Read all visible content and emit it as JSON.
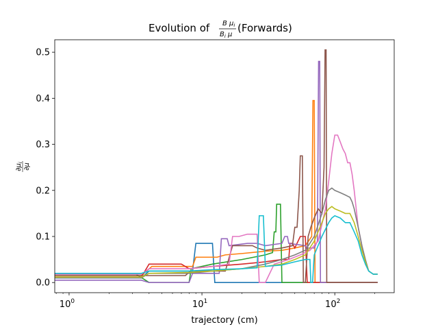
{
  "chart_data": {
    "type": "line",
    "title_prefix": "Evolution of ",
    "title_frac_num": "B μ",
    "title_frac_num_sub": "i",
    "title_frac_den": "B",
    "title_frac_den_sub": "i",
    "title_frac_den_tail": " μ",
    "title_suffix": " (Forwards)",
    "xlabel": "trajectory (cm)",
    "ylabel_num": "∂μ",
    "ylabel_num_sub": "i",
    "ylabel_den": "∂μ",
    "xscale": "log",
    "xlim": [
      0.78,
      280
    ],
    "ylim": [
      -0.022,
      0.527
    ],
    "xticks": [
      {
        "value": 1,
        "base": "10",
        "exp": "0"
      },
      {
        "value": 10,
        "base": "10",
        "exp": "1"
      },
      {
        "value": 100,
        "base": "10",
        "exp": "2"
      }
    ],
    "yticks": [
      {
        "value": 0.0,
        "label": "0.0"
      },
      {
        "value": 0.1,
        "label": "0.1"
      },
      {
        "value": 0.2,
        "label": "0.2"
      },
      {
        "value": 0.3,
        "label": "0.3"
      },
      {
        "value": 0.4,
        "label": "0.4"
      },
      {
        "value": 0.5,
        "label": "0.5"
      }
    ],
    "grid": false,
    "legend": "none",
    "series": [
      {
        "color": "#1f77b4",
        "points": [
          [
            0.78,
            0.01
          ],
          [
            3.5,
            0.01
          ],
          [
            4.0,
            0.025
          ],
          [
            8.5,
            0.025
          ],
          [
            9.0,
            0.085
          ],
          [
            12.0,
            0.085
          ],
          [
            12.5,
            0.0
          ],
          [
            210,
            0.0
          ]
        ]
      },
      {
        "color": "#ff7f0e",
        "points": [
          [
            0.78,
            0.015
          ],
          [
            3.5,
            0.015
          ],
          [
            4.2,
            0.035
          ],
          [
            8.5,
            0.035
          ],
          [
            9.0,
            0.055
          ],
          [
            13.0,
            0.055
          ],
          [
            15,
            0.06
          ],
          [
            20,
            0.063
          ],
          [
            30,
            0.068
          ],
          [
            40,
            0.07
          ],
          [
            50,
            0.075
          ],
          [
            60,
            0.08
          ],
          [
            67,
            0.1
          ],
          [
            68.5,
            0.395
          ],
          [
            70,
            0.395
          ],
          [
            71,
            0.0
          ],
          [
            210,
            0.0
          ]
        ]
      },
      {
        "color": "#2ca02c",
        "points": [
          [
            0.78,
            0.018
          ],
          [
            3.2,
            0.018
          ],
          [
            4.0,
            0.0
          ],
          [
            8.0,
            0.0
          ],
          [
            8.3,
            0.03
          ],
          [
            12,
            0.04
          ],
          [
            20,
            0.05
          ],
          [
            30,
            0.06
          ],
          [
            34,
            0.065
          ],
          [
            35,
            0.11
          ],
          [
            36,
            0.11
          ],
          [
            36.5,
            0.17
          ],
          [
            39,
            0.17
          ],
          [
            40,
            0.0
          ],
          [
            210,
            0.0
          ]
        ]
      },
      {
        "color": "#d62728",
        "points": [
          [
            0.78,
            0.012
          ],
          [
            3.5,
            0.012
          ],
          [
            4.0,
            0.04
          ],
          [
            7.0,
            0.04
          ],
          [
            8.0,
            0.03
          ],
          [
            12,
            0.035
          ],
          [
            20,
            0.04
          ],
          [
            30,
            0.045
          ],
          [
            40,
            0.05
          ],
          [
            45,
            0.05
          ],
          [
            46,
            0.085
          ],
          [
            48,
            0.085
          ],
          [
            50,
            0.075
          ],
          [
            55,
            0.1
          ],
          [
            60,
            0.1
          ],
          [
            62,
            0.0
          ],
          [
            210,
            0.0
          ]
        ]
      },
      {
        "color": "#9467bd",
        "points": [
          [
            0.78,
            0.005
          ],
          [
            3.5,
            0.005
          ],
          [
            4.0,
            0.0
          ],
          [
            8.0,
            0.0
          ],
          [
            8.5,
            0.02
          ],
          [
            13.5,
            0.02
          ],
          [
            14,
            0.095
          ],
          [
            15.5,
            0.095
          ],
          [
            16,
            0.08
          ],
          [
            22,
            0.085
          ],
          [
            26,
            0.085
          ],
          [
            30,
            0.08
          ],
          [
            40,
            0.085
          ],
          [
            42,
            0.1
          ],
          [
            44,
            0.1
          ],
          [
            45,
            0.085
          ],
          [
            60,
            0.08
          ],
          [
            62,
            0.075
          ],
          [
            70,
            0.075
          ],
          [
            74,
            0.09
          ],
          [
            75.5,
            0.48
          ],
          [
            77,
            0.48
          ],
          [
            78,
            0.0
          ],
          [
            210,
            0.0
          ]
        ]
      },
      {
        "color": "#8c564b",
        "points": [
          [
            0.78,
            0.015
          ],
          [
            7.5,
            0.015
          ],
          [
            8.2,
            0.025
          ],
          [
            15,
            0.025
          ],
          [
            17,
            0.08
          ],
          [
            24,
            0.08
          ],
          [
            26,
            0.075
          ],
          [
            30,
            0.07
          ],
          [
            40,
            0.075
          ],
          [
            48,
            0.08
          ],
          [
            50,
            0.12
          ],
          [
            52,
            0.12
          ],
          [
            54,
            0.2
          ],
          [
            55,
            0.275
          ],
          [
            57,
            0.275
          ],
          [
            58,
            0.0
          ],
          [
            60,
            0.0
          ],
          [
            63,
            0.1
          ],
          [
            66,
            0.12
          ],
          [
            70,
            0.14
          ],
          [
            75,
            0.16
          ],
          [
            80,
            0.15
          ],
          [
            83,
            0.25
          ],
          [
            84.5,
            0.505
          ],
          [
            86,
            0.505
          ],
          [
            87,
            0.0
          ],
          [
            210,
            0.0
          ]
        ]
      },
      {
        "color": "#e377c2",
        "points": [
          [
            0.78,
            0.018
          ],
          [
            3.5,
            0.018
          ],
          [
            4.0,
            0.03
          ],
          [
            8,
            0.03
          ],
          [
            12,
            0.035
          ],
          [
            16,
            0.04
          ],
          [
            17,
            0.1
          ],
          [
            19,
            0.1
          ],
          [
            22,
            0.105
          ],
          [
            26,
            0.105
          ],
          [
            27,
            0.0
          ],
          [
            30,
            0.0
          ],
          [
            35,
            0.04
          ],
          [
            45,
            0.05
          ],
          [
            55,
            0.06
          ],
          [
            65,
            0.07
          ],
          [
            75,
            0.09
          ],
          [
            85,
            0.16
          ],
          [
            90,
            0.22
          ],
          [
            95,
            0.28
          ],
          [
            100,
            0.32
          ],
          [
            105,
            0.32
          ],
          [
            110,
            0.305
          ],
          [
            115,
            0.29
          ],
          [
            120,
            0.28
          ],
          [
            125,
            0.26
          ],
          [
            130,
            0.26
          ],
          [
            135,
            0.235
          ],
          [
            140,
            0.2
          ],
          [
            150,
            0.12
          ],
          [
            160,
            0.08
          ],
          [
            170,
            0.04
          ],
          [
            180,
            0.025
          ],
          [
            195,
            0.018
          ],
          [
            210,
            0.018
          ]
        ]
      },
      {
        "color": "#7f7f7f",
        "points": [
          [
            0.78,
            0.01
          ],
          [
            3.5,
            0.01
          ],
          [
            4.0,
            0.02
          ],
          [
            8,
            0.02
          ],
          [
            12,
            0.025
          ],
          [
            20,
            0.03
          ],
          [
            30,
            0.04
          ],
          [
            40,
            0.05
          ],
          [
            50,
            0.06
          ],
          [
            60,
            0.07
          ],
          [
            70,
            0.1
          ],
          [
            80,
            0.15
          ],
          [
            85,
            0.18
          ],
          [
            90,
            0.2
          ],
          [
            95,
            0.205
          ],
          [
            100,
            0.2
          ],
          [
            110,
            0.195
          ],
          [
            120,
            0.19
          ],
          [
            130,
            0.185
          ],
          [
            135,
            0.175
          ],
          [
            140,
            0.16
          ],
          [
            150,
            0.12
          ],
          [
            160,
            0.08
          ],
          [
            170,
            0.05
          ],
          [
            180,
            0.025
          ],
          [
            195,
            0.018
          ],
          [
            210,
            0.018
          ]
        ]
      },
      {
        "color": "#bcbd22",
        "points": [
          [
            0.78,
            0.012
          ],
          [
            3.5,
            0.012
          ],
          [
            4.0,
            0.02
          ],
          [
            8,
            0.022
          ],
          [
            12,
            0.025
          ],
          [
            20,
            0.03
          ],
          [
            30,
            0.035
          ],
          [
            40,
            0.04
          ],
          [
            50,
            0.05
          ],
          [
            60,
            0.06
          ],
          [
            70,
            0.09
          ],
          [
            80,
            0.13
          ],
          [
            85,
            0.15
          ],
          [
            90,
            0.16
          ],
          [
            95,
            0.165
          ],
          [
            100,
            0.16
          ],
          [
            110,
            0.155
          ],
          [
            120,
            0.15
          ],
          [
            130,
            0.15
          ],
          [
            135,
            0.14
          ],
          [
            140,
            0.13
          ],
          [
            150,
            0.1
          ],
          [
            160,
            0.07
          ],
          [
            170,
            0.045
          ],
          [
            180,
            0.025
          ],
          [
            195,
            0.018
          ],
          [
            210,
            0.018
          ]
        ]
      },
      {
        "color": "#17becf",
        "points": [
          [
            0.78,
            0.02
          ],
          [
            3.5,
            0.02
          ],
          [
            4.0,
            0.025
          ],
          [
            8,
            0.025
          ],
          [
            12,
            0.028
          ],
          [
            20,
            0.03
          ],
          [
            26,
            0.032
          ],
          [
            27,
            0.145
          ],
          [
            29,
            0.145
          ],
          [
            30,
            0.035
          ],
          [
            40,
            0.038
          ],
          [
            50,
            0.045
          ],
          [
            60,
            0.05
          ],
          [
            65,
            0.05
          ],
          [
            66,
            0.0
          ],
          [
            68,
            0.0
          ],
          [
            70,
            0.06
          ],
          [
            80,
            0.1
          ],
          [
            90,
            0.13
          ],
          [
            95,
            0.14
          ],
          [
            100,
            0.145
          ],
          [
            110,
            0.14
          ],
          [
            120,
            0.13
          ],
          [
            130,
            0.13
          ],
          [
            140,
            0.11
          ],
          [
            150,
            0.09
          ],
          [
            160,
            0.06
          ],
          [
            170,
            0.04
          ],
          [
            180,
            0.025
          ],
          [
            195,
            0.018
          ],
          [
            210,
            0.018
          ]
        ]
      }
    ]
  }
}
